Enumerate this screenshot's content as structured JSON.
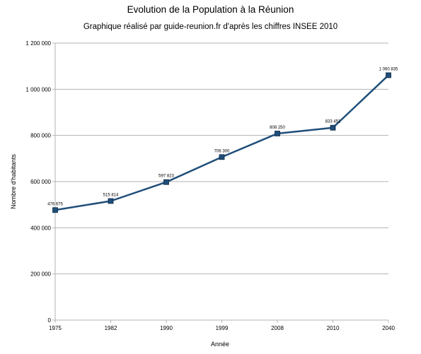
{
  "chart_data": {
    "type": "line",
    "title": "Evolution de la Population à la Réunion",
    "subtitle": "Graphique réalisé par guide-reunion.fr d'après les chiffres INSEE 2010",
    "xlabel": "Année",
    "ylabel": "Nombre d'habitants",
    "categories": [
      "1975",
      "1982",
      "1990",
      "1999",
      "2008",
      "2010",
      "2040"
    ],
    "series": [
      {
        "values": [
          476675,
          515814,
          597823,
          706300,
          808250,
          833451,
          1060835
        ],
        "labels": [
          "476 675",
          "515 814",
          "597 823",
          "706 300",
          "808 250",
          "833 451",
          "1 060 835"
        ]
      }
    ],
    "ylim": [
      0,
      1200000
    ],
    "yticks": [
      0,
      200000,
      400000,
      600000,
      800000,
      1000000,
      1200000
    ],
    "ytick_labels": [
      "0",
      "200 000",
      "400 000",
      "600 000",
      "800 000",
      "1 000 000",
      "1 200 000"
    ],
    "grid": "horizontal",
    "colors": {
      "line": "#1f4e79",
      "marker": "#1f4e79",
      "grid": "#b3b3b3",
      "axis": "#b3b3b3"
    }
  }
}
